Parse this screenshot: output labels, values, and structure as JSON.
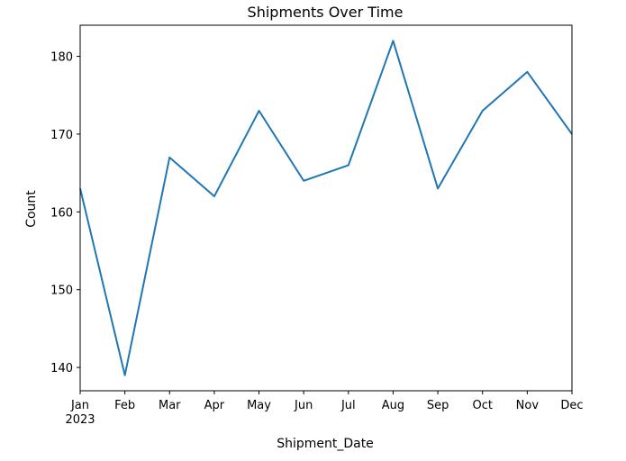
{
  "chart_data": {
    "type": "line",
    "title": "Shipments Over Time",
    "xlabel": "Shipment_Date",
    "ylabel": "Count",
    "categories": [
      "Jan",
      "Feb",
      "Mar",
      "Apr",
      "May",
      "Jun",
      "Jul",
      "Aug",
      "Sep",
      "Oct",
      "Nov",
      "Dec"
    ],
    "year_label": "2023",
    "series": [
      {
        "values": [
          163,
          139,
          167,
          162,
          173,
          164,
          166,
          182,
          163,
          173,
          178,
          170
        ],
        "color": "#1f77b4"
      }
    ],
    "yticks": [
      140,
      150,
      160,
      170,
      180
    ],
    "ylim": [
      137,
      184
    ],
    "grid": false,
    "legend": "none"
  }
}
